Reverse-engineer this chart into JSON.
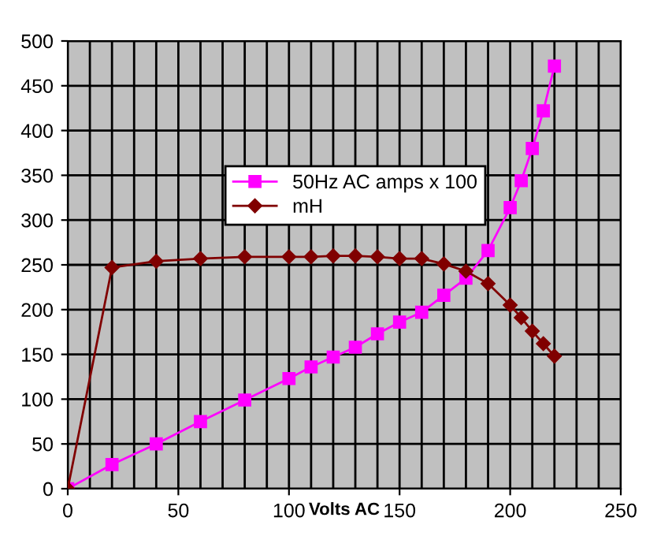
{
  "chart_data": {
    "type": "line",
    "xlabel": "Volts AC",
    "xlim": [
      0,
      250
    ],
    "xticks": [
      0,
      50,
      100,
      150,
      200,
      250
    ],
    "ylim": [
      0,
      500
    ],
    "yticks": [
      0,
      50,
      100,
      150,
      200,
      250,
      300,
      350,
      400,
      450,
      500
    ],
    "grid": true,
    "legend": "center",
    "series": [
      {
        "name": "50Hz AC amps x 100",
        "color": "#ff00ff",
        "marker": "square",
        "x": [
          0,
          20,
          40,
          60,
          80,
          100,
          110,
          120,
          130,
          140,
          150,
          160,
          170,
          180,
          190,
          200,
          205,
          210,
          215,
          220
        ],
        "values": [
          0,
          27,
          50,
          75,
          99,
          123,
          136,
          147,
          158,
          173,
          186,
          197,
          216,
          235,
          266,
          314,
          344,
          380,
          422,
          472
        ]
      },
      {
        "name": "mH",
        "color": "#800000",
        "marker": "diamond",
        "x": [
          0,
          20,
          40,
          60,
          80,
          100,
          110,
          120,
          130,
          140,
          150,
          160,
          170,
          180,
          190,
          200,
          205,
          210,
          215,
          220
        ],
        "values": [
          0,
          247,
          254,
          257,
          259,
          259,
          259,
          260,
          260,
          259,
          257,
          257,
          251,
          243,
          229,
          205,
          191,
          176,
          162,
          148
        ]
      }
    ]
  }
}
